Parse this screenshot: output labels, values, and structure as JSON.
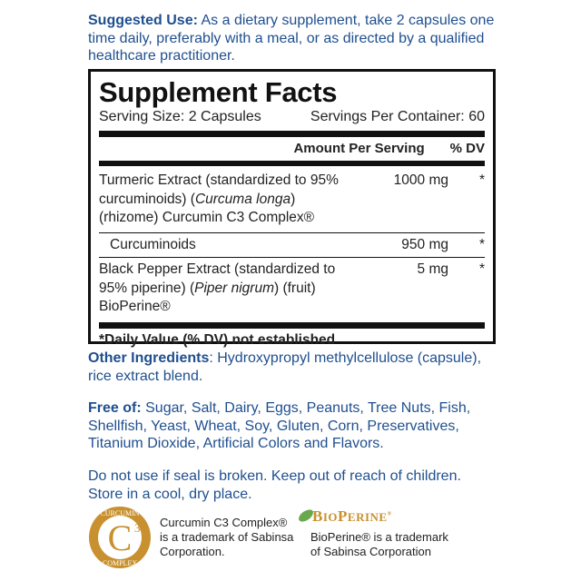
{
  "suggested_use": {
    "label": "Suggested Use:",
    "text": " As a dietary supplement, take 2 capsules one time daily, preferably with a meal, or as directed by a qualified healthcare practitioner."
  },
  "facts": {
    "title": "Supplement Facts",
    "serving_size": "Serving Size: 2 Capsules",
    "servings_per_container": "Servings Per Container: 60",
    "amount_header": "Amount Per Serving",
    "dv_header": "% DV",
    "ingredients": [
      {
        "name_a": "Turmeric Extract (standardized to 95% curcuminoids) (",
        "name_i": "Curcuma longa",
        "name_b": ") (rhizome) Curcumin C3 Complex®",
        "amount": "1000 mg",
        "dv": "*"
      },
      {
        "name_a": "Curcuminoids",
        "name_i": "",
        "name_b": "",
        "amount": "950 mg",
        "dv": "*"
      },
      {
        "name_a": "Black Pepper Extract (standardized to 95% piperine) (",
        "name_i": "Piper nigrum",
        "name_b": ") (fruit) BioPerine®",
        "amount": "5 mg",
        "dv": "*"
      }
    ],
    "footnote": "*Daily Value (% DV) not established"
  },
  "other_ingredients": {
    "label": "Other Ingredients",
    "text": ": Hydroxypropyl methylcellulose (capsule), rice extract blend."
  },
  "free_of": {
    "label": "Free of:",
    "text": " Sugar, Salt, Dairy, Eggs, Peanuts, Tree Nuts, Fish, Shellfish, Yeast, Wheat, Soy, Gluten, Corn, Preservatives, Titanium Dioxide, Artificial Colors and Flavors."
  },
  "warning": "Do not use if seal is broken. Keep out of reach of children. Store in a cool, dry place.",
  "trademarks": {
    "curcumin_logo": "CURCUMIN C3 COMPLEX",
    "curcumin_text": "Curcumin C3 Complex® is a trademark of Sabinsa Corporation.",
    "bioperine_logo": "BIOPERINE",
    "bioperine_text": "BioPerine® is a trademark of Sabinsa Corporation"
  },
  "colors": {
    "text_blue": "#1f4f8f",
    "logo_gold": "#c8902e",
    "logo_green": "#6aa84f"
  }
}
